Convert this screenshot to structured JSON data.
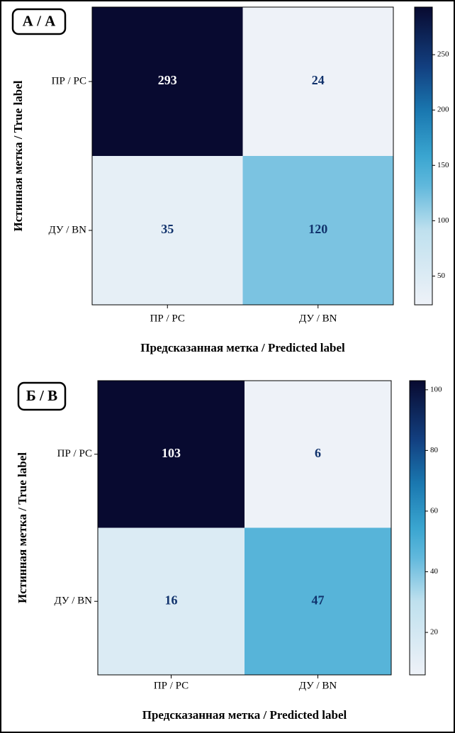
{
  "chart_data": [
    {
      "type": "heatmap",
      "panel_label": "А / А",
      "x_categories": [
        "ПР / РС",
        "ДУ / BN"
      ],
      "y_categories": [
        "ПР / РС",
        "ДУ / BN"
      ],
      "values": [
        [
          293,
          24
        ],
        [
          35,
          120
        ]
      ],
      "xlabel": "Предсказанная метка / Predicted label",
      "ylabel": "Истинная метка / True label",
      "colormap": "Blues",
      "clim": [
        24,
        293
      ],
      "cticks": [
        50,
        100,
        150,
        200,
        250
      ]
    },
    {
      "type": "heatmap",
      "panel_label": "Б / B",
      "x_categories": [
        "ПР / РС",
        "ДУ / BN"
      ],
      "y_categories": [
        "ПР / РС",
        "ДУ / BN"
      ],
      "values": [
        [
          103,
          6
        ],
        [
          16,
          47
        ]
      ],
      "xlabel": "Предсказанная метка / Predicted label",
      "ylabel": "Истинная метка / True label",
      "colormap": "Blues",
      "clim": [
        6,
        103
      ],
      "cticks": [
        20,
        40,
        60,
        80,
        100
      ]
    }
  ]
}
